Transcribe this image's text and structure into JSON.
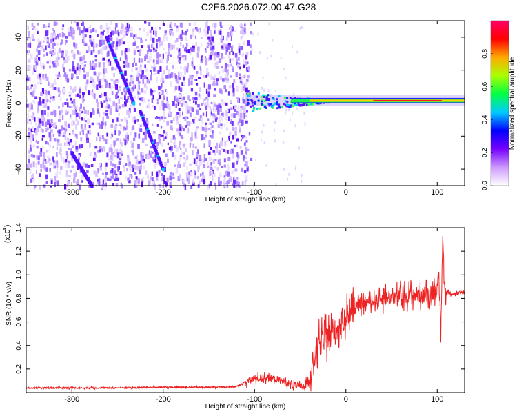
{
  "title": "C2E6.2026.072.00.47.G28",
  "chart_data": [
    {
      "type": "heatmap",
      "xlabel": "Height of straight line (km)",
      "ylabel": "Frequency (Hz)",
      "xlim": [
        -350,
        130
      ],
      "ylim": [
        -50,
        50
      ],
      "x_ticks": [
        -300,
        -200,
        -100,
        0,
        100
      ],
      "y_ticks": [
        -40,
        -20,
        0,
        20,
        40
      ],
      "colorbar": {
        "label": "Normalized spectral amplitude",
        "range": [
          0,
          1
        ],
        "ticks": [
          "0.0",
          "0.2",
          "0.4",
          "0.6",
          "0.8"
        ],
        "colors": [
          "#ffffff",
          "#cc99ff",
          "#7700ff",
          "#0000ff",
          "#00ccff",
          "#00ff44",
          "#aaff00",
          "#ffaa00",
          "#ff0000",
          "#ff0066"
        ]
      },
      "features": {
        "noise_region_x": [
          -350,
          -105
        ],
        "diagonal_lines": [
          {
            "x": [
              -262,
              -232
            ],
            "y": [
              40,
              0
            ]
          },
          {
            "x": [
              -225,
              -200
            ],
            "y": [
              -5,
              -40
            ]
          },
          {
            "x": [
              -300,
              -278
            ],
            "y": [
              -30,
              -50
            ]
          }
        ],
        "carrier_frequency_hz": 1.5,
        "carrier_x": [
          -110,
          130
        ]
      }
    },
    {
      "type": "line",
      "xlabel": "Height of straight line (km)",
      "ylabel": "SNR (10 * v/v)",
      "scale_label": "(x10",
      "scale_exp": "4",
      "scale_close": ")",
      "xlim": [
        -350,
        130
      ],
      "ylim": [
        0,
        1.4
      ],
      "x_ticks": [
        -300,
        -200,
        -100,
        0,
        100
      ],
      "y_ticks": [
        "0.2",
        "0.4",
        "0.6",
        "0.8",
        "1.0",
        "1.2",
        "1.4"
      ],
      "series": [
        {
          "color": "#ee2222",
          "x": [
            -350,
            -300,
            -250,
            -200,
            -150,
            -120,
            -110,
            -100,
            -90,
            -80,
            -70,
            -60,
            -50,
            -45,
            -40,
            -35,
            -30,
            -25,
            -20,
            -15,
            -10,
            -5,
            0,
            10,
            20,
            30,
            40,
            50,
            60,
            70,
            80,
            85,
            90,
            95,
            100,
            102,
            104,
            106,
            108,
            110,
            120,
            130
          ],
          "y": [
            0.04,
            0.04,
            0.04,
            0.045,
            0.045,
            0.05,
            0.09,
            0.12,
            0.13,
            0.12,
            0.1,
            0.07,
            0.05,
            0.06,
            0.12,
            0.28,
            0.4,
            0.45,
            0.48,
            0.5,
            0.52,
            0.6,
            0.65,
            0.72,
            0.76,
            0.78,
            0.8,
            0.81,
            0.82,
            0.83,
            0.83,
            0.82,
            0.84,
            0.85,
            0.88,
            0.9,
            0.5,
            1.35,
            0.85,
            0.85,
            0.84,
            0.85
          ]
        }
      ]
    }
  ]
}
